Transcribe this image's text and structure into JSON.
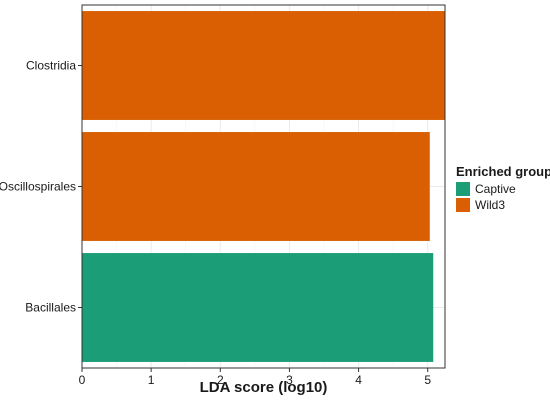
{
  "chart_data": {
    "type": "bar",
    "orientation": "horizontal",
    "categories": [
      "Clostridia",
      "Oscillospirales",
      "Bacillales"
    ],
    "values": [
      5.25,
      5.03,
      5.08
    ],
    "groups": [
      "Wild3",
      "Wild3",
      "Captive"
    ],
    "xlabel": "LDA score (log10)",
    "ylabel": "",
    "xlim": [
      0,
      5.25
    ],
    "x_ticks": [
      "0",
      "1",
      "2",
      "3",
      "4",
      "5"
    ],
    "grid": true,
    "legend": {
      "title": "Enriched group",
      "placement": "right",
      "entries": [
        {
          "name": "Captive",
          "color": "#1b9e77"
        },
        {
          "name": "Wild3",
          "color": "#d95f02"
        }
      ]
    }
  }
}
